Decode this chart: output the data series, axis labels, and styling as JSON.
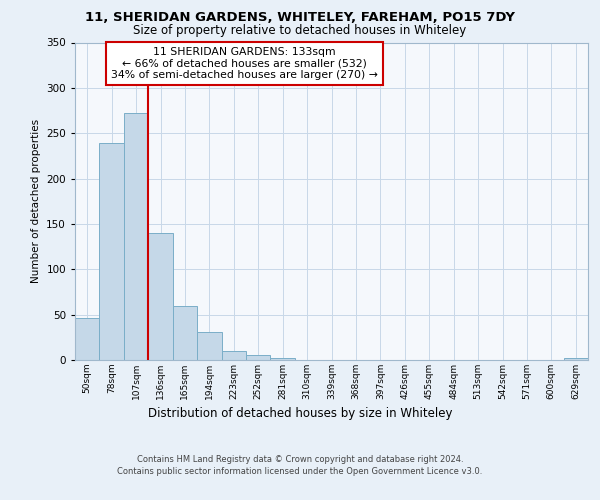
{
  "title1": "11, SHERIDAN GARDENS, WHITELEY, FAREHAM, PO15 7DY",
  "title2": "Size of property relative to detached houses in Whiteley",
  "xlabel": "Distribution of detached houses by size in Whiteley",
  "ylabel": "Number of detached properties",
  "bin_labels": [
    "50sqm",
    "78sqm",
    "107sqm",
    "136sqm",
    "165sqm",
    "194sqm",
    "223sqm",
    "252sqm",
    "281sqm",
    "310sqm",
    "339sqm",
    "368sqm",
    "397sqm",
    "426sqm",
    "455sqm",
    "484sqm",
    "513sqm",
    "542sqm",
    "571sqm",
    "600sqm",
    "629sqm"
  ],
  "bar_heights": [
    46,
    239,
    272,
    140,
    60,
    31,
    10,
    5,
    2,
    0,
    0,
    0,
    0,
    0,
    0,
    0,
    0,
    0,
    0,
    0,
    2
  ],
  "bar_color": "#c5d8e8",
  "bar_edgecolor": "#7aaec8",
  "vline_color": "#cc0000",
  "annotation_line1": "11 SHERIDAN GARDENS: 133sqm",
  "annotation_line2": "← 66% of detached houses are smaller (532)",
  "annotation_line3": "34% of semi-detached houses are larger (270) →",
  "annotation_box_color": "#ffffff",
  "annotation_box_edgecolor": "#cc0000",
  "ylim": [
    0,
    350
  ],
  "yticks": [
    0,
    50,
    100,
    150,
    200,
    250,
    300,
    350
  ],
  "footer1": "Contains HM Land Registry data © Crown copyright and database right 2024.",
  "footer2": "Contains public sector information licensed under the Open Government Licence v3.0.",
  "bg_color": "#e8f0f8",
  "plot_bg_color": "#f5f8fc",
  "grid_color": "#c8d8e8"
}
